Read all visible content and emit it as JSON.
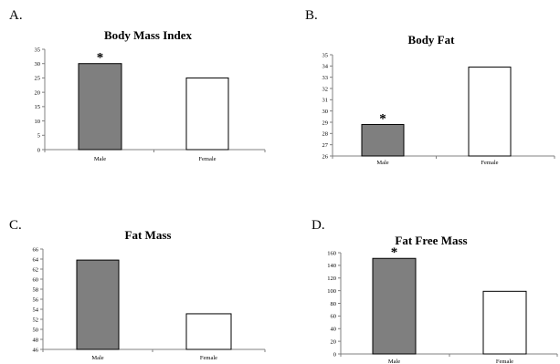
{
  "chart_data": [
    {
      "type": "bar",
      "panel": "A.",
      "title": "Body Mass Index",
      "categories": [
        "Male",
        "Female"
      ],
      "values": [
        30,
        25
      ],
      "bar_colors": [
        "#7f7f7f",
        "#ffffff"
      ],
      "ylim": [
        0,
        35
      ],
      "yticks": [
        0,
        5,
        10,
        15,
        20,
        25,
        30,
        35
      ],
      "annotation": "*",
      "annotated_category": 0,
      "xlabel": "",
      "ylabel": ""
    },
    {
      "type": "bar",
      "panel": "B.",
      "title": "Body Fat",
      "categories": [
        "Male",
        "Female"
      ],
      "values": [
        28.8,
        33.9
      ],
      "bar_colors": [
        "#7f7f7f",
        "#ffffff"
      ],
      "ylim": [
        26,
        35
      ],
      "yticks": [
        26,
        27,
        28,
        29,
        30,
        31,
        32,
        33,
        34,
        35
      ],
      "annotation": "*",
      "annotated_category": 0,
      "xlabel": "",
      "ylabel": ""
    },
    {
      "type": "bar",
      "panel": "C.",
      "title": "Fat Mass",
      "categories": [
        "Male",
        "Female"
      ],
      "values": [
        63.8,
        53.1
      ],
      "bar_colors": [
        "#7f7f7f",
        "#ffffff"
      ],
      "ylim": [
        46,
        66
      ],
      "yticks": [
        46,
        48,
        50,
        52,
        54,
        56,
        58,
        60,
        62,
        64,
        66
      ],
      "xlabel": "",
      "ylabel": ""
    },
    {
      "type": "bar",
      "panel": "D.",
      "title": "Fat Free Mass",
      "categories": [
        "Male",
        "Female"
      ],
      "values": [
        151,
        99
      ],
      "bar_colors": [
        "#7f7f7f",
        "#ffffff"
      ],
      "ylim": [
        0,
        160
      ],
      "yticks": [
        0,
        20,
        40,
        60,
        80,
        100,
        120,
        140,
        160
      ],
      "annotation": "*",
      "annotated_category": 0,
      "xlabel": "",
      "ylabel": ""
    }
  ],
  "colors": {
    "male_bar": "#7f7f7f",
    "female_bar": "#ffffff",
    "outline": "#000000",
    "axis": "#808080"
  }
}
